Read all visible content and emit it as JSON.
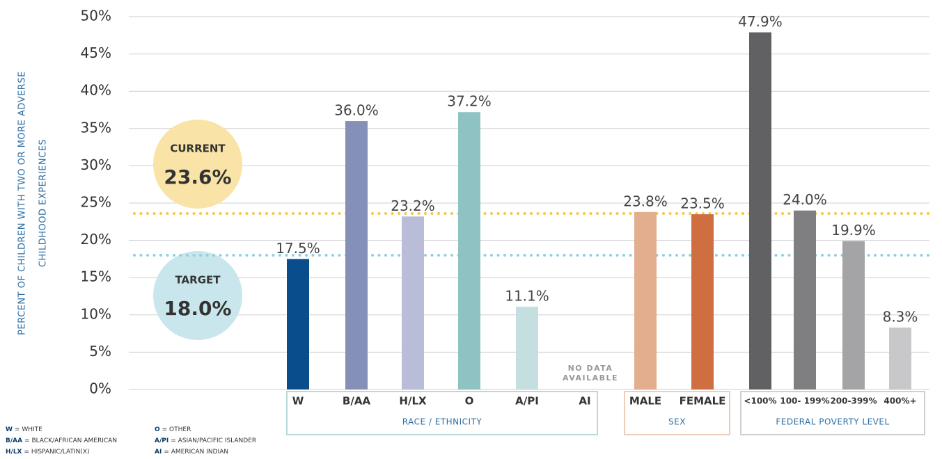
{
  "chart_data": {
    "type": "grouped-bar",
    "y_label": [
      "PERCENT OF CHILDREN WITH TWO OR MORE ADVERSE",
      "CHILDHOOD EXPERIENCES"
    ],
    "ylim": [
      0,
      50
    ],
    "yticks": [
      {
        "value": 0,
        "label": "0%"
      },
      {
        "value": 5,
        "label": "5%"
      },
      {
        "value": 10,
        "label": "10%"
      },
      {
        "value": 15,
        "label": "15%"
      },
      {
        "value": 20,
        "label": "20%"
      },
      {
        "value": 25,
        "label": "25%"
      },
      {
        "value": 30,
        "label": "30%"
      },
      {
        "value": 35,
        "label": "35%"
      },
      {
        "value": 40,
        "label": "40%"
      },
      {
        "value": 45,
        "label": "45%"
      },
      {
        "value": 50,
        "label": "50%"
      }
    ],
    "grid": true,
    "groups": [
      {
        "label": "RACE / ETHNICITY",
        "border": "#b7d9da",
        "categories": [
          "W",
          "B/AA",
          "H/LX",
          "O",
          "A/PI",
          "AI"
        ],
        "values": [
          17.5,
          36.0,
          23.2,
          37.2,
          11.1,
          null
        ],
        "value_labels": [
          "17.5%",
          "36.0%",
          "23.2%",
          "37.2%",
          "11.1%",
          null
        ],
        "colors": [
          "#0a4d8c",
          "#8590b9",
          "#babdd8",
          "#8fc3c3",
          "#c5dfe0",
          "#cccccc"
        ]
      },
      {
        "label": "SEX",
        "border": "#f0cdb8",
        "categories": [
          "MALE",
          "FEMALE"
        ],
        "values": [
          23.8,
          23.5
        ],
        "value_labels": [
          "23.8%",
          "23.5%"
        ],
        "colors": [
          "#e2ae8e",
          "#cf6e40"
        ]
      },
      {
        "label": "FEDERAL POVERTY LEVEL",
        "border": "#cfcfd2",
        "categories": [
          "<100%",
          "100- 199%",
          "200-399%",
          "400%+"
        ],
        "values": [
          47.9,
          24.0,
          19.9,
          8.3
        ],
        "value_labels": [
          "47.9%",
          "24.0%",
          "19.9%",
          "8.3%"
        ],
        "colors": [
          "#616163",
          "#7f7f82",
          "#a4a4a7",
          "#c8c8ca"
        ]
      }
    ],
    "annotation": [
      "NO DATA",
      "AVAILABLE"
    ],
    "reference_lines": [
      {
        "name": "CURRENT",
        "value": 23.6,
        "label": "23.6%",
        "color": "#f2c94c",
        "fill": "#f9e3a6"
      },
      {
        "name": "TARGET",
        "value": 18.0,
        "label": "18.0%",
        "color": "#8fcfe0",
        "fill": "#c9e6ec"
      }
    ],
    "footnotes": [
      {
        "abbr": "W",
        "text": "= WHITE"
      },
      {
        "abbr": "B/AA",
        "text": "= BLACK/AFRICAN AMERICAN"
      },
      {
        "abbr": "H/LX",
        "text": "= HISPANIC/LATIN(X)"
      },
      {
        "abbr": "O",
        "text": "= OTHER"
      },
      {
        "abbr": "A/PI",
        "text": "= ASIAN/PACIFIC ISLANDER"
      },
      {
        "abbr": "AI",
        "text": "= AMERICAN INDIAN"
      }
    ]
  }
}
